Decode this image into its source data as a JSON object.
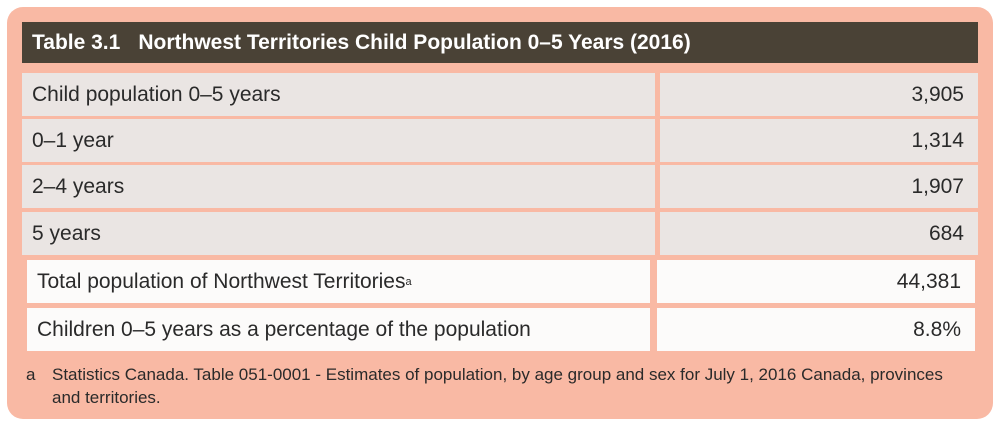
{
  "table": {
    "number": "Table 3.1",
    "title": "Northwest Territories Child Population 0–5 Years (2016)",
    "rows": [
      {
        "label": "Child population 0–5 years",
        "value": "3,905"
      },
      {
        "label": "0–1 year",
        "value": "1,314"
      },
      {
        "label": "2–4 years",
        "value": "1,907"
      },
      {
        "label": "5 years",
        "value": "684"
      }
    ],
    "summary_rows": [
      {
        "label": "Total population of Northwest Territories",
        "sup": "a",
        "value": "44,381"
      },
      {
        "label": "Children 0–5 years as a percentage of the population",
        "value": "8.8%"
      }
    ],
    "footnote": {
      "mark": "a",
      "text": "Statistics Canada. Table 051-0001 - Estimates of population, by age group and sex for July 1, 2016 Canada, provinces and territories."
    }
  },
  "colors": {
    "panel": "#f9b9a4",
    "header": "#4a4236",
    "grey_cell": "#eae5e3",
    "white_cell": "#fcfbfa"
  }
}
